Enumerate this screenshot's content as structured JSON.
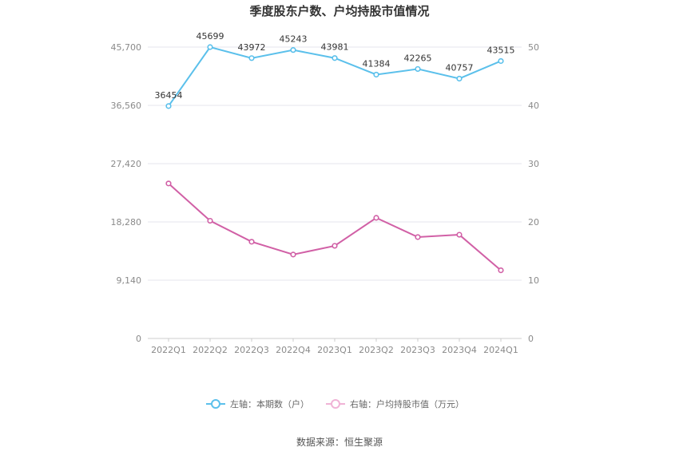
{
  "chart_data": {
    "type": "line",
    "title": "季度股东户数、户均持股市值情况",
    "categories": [
      "2022Q1",
      "2022Q2",
      "2022Q3",
      "2022Q4",
      "2023Q1",
      "2023Q2",
      "2023Q3",
      "2023Q4",
      "2024Q1"
    ],
    "left_axis": {
      "ticks": [
        "0",
        "9,140",
        "18,280",
        "27,420",
        "36,560",
        "45,700"
      ],
      "ylim": [
        0,
        45700
      ]
    },
    "right_axis": {
      "ticks": [
        "0",
        "10",
        "20",
        "30",
        "40",
        "50"
      ],
      "ylim": [
        0,
        50
      ]
    },
    "series": [
      {
        "name": "左轴：本期数（户）",
        "axis": "left",
        "color": "#5bc0eb",
        "values": [
          36454,
          45699,
          43972,
          45243,
          43981,
          41384,
          42265,
          40757,
          43515
        ],
        "labels": [
          "36454",
          "45699",
          "43972",
          "45243",
          "43981",
          "41384",
          "42265",
          "40757",
          "43515"
        ]
      },
      {
        "name": "右轴：户均持股市值（万元）",
        "axis": "right",
        "color": "#d160a6",
        "values": [
          26.6,
          20.2,
          16.6,
          14.4,
          15.9,
          20.7,
          17.4,
          17.8,
          11.7
        ]
      }
    ],
    "grid": true,
    "legend_position": "bottom"
  },
  "footer": {
    "source": "数据来源：恒生聚源"
  }
}
